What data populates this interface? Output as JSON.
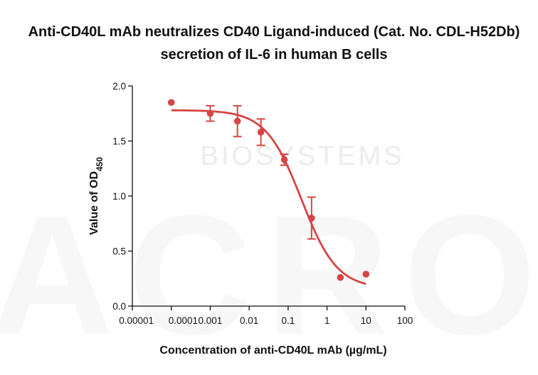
{
  "chart_data": {
    "type": "scatter",
    "title": "Anti-CD40L mAb neutralizes CD40 Ligand-induced (Cat. No. CDL-H52Db)",
    "subtitle": "secretion of IL-6 in human B cells",
    "xlabel": "Concentration of anti-CD40L mAb (µg/mL)",
    "ylabel": "Value of OD",
    "ylabel_sub": "450",
    "x_scale": "log",
    "xlim": [
      1e-05,
      100
    ],
    "ylim": [
      0,
      2.0
    ],
    "x_ticks": [
      1e-05,
      0.0001,
      0.001,
      0.01,
      0.1,
      1,
      10,
      100
    ],
    "x_tick_labels": [
      "0.00001",
      "0.0001",
      "0.001",
      "0.01",
      "0.1",
      "1",
      "10",
      "100"
    ],
    "y_ticks": [
      0,
      0.5,
      1.0,
      1.5,
      2.0
    ],
    "y_tick_labels": [
      "0.0",
      "0.5",
      "1.0",
      "1.5",
      "2.0"
    ],
    "grid": false,
    "series": [
      {
        "color": "#d64545",
        "points": [
          {
            "x": 0.0001,
            "y": 1.85,
            "err": 0
          },
          {
            "x": 0.001,
            "y": 1.75,
            "err": 0.07
          },
          {
            "x": 0.005,
            "y": 1.68,
            "err": 0.14
          },
          {
            "x": 0.02,
            "y": 1.58,
            "err": 0.12
          },
          {
            "x": 0.08,
            "y": 1.33,
            "err": 0.05
          },
          {
            "x": 0.4,
            "y": 0.8,
            "err": 0.19
          },
          {
            "x": 2.2,
            "y": 0.26,
            "err": 0
          },
          {
            "x": 10,
            "y": 0.29,
            "err": 0
          }
        ],
        "fit": {
          "model": "4PL",
          "top": 1.78,
          "bottom": 0.16,
          "ec50": 0.22,
          "hill": 0.95
        }
      }
    ],
    "watermark": "BIOSYSTEMS",
    "watermark_logo": "ACRO"
  }
}
